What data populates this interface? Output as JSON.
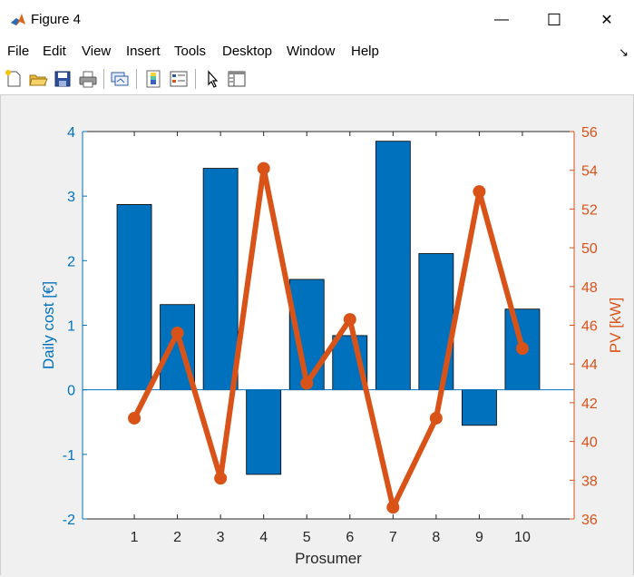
{
  "window": {
    "title": "Figure 4"
  },
  "window_controls": {
    "minimize": "—",
    "maximize": "☐",
    "close": "✕"
  },
  "menu": [
    "File",
    "Edit",
    "View",
    "Insert",
    "Tools",
    "Desktop",
    "Window",
    "Help"
  ],
  "toolbar": {
    "icons": [
      "new-figure-icon",
      "open-file-icon",
      "save-icon",
      "print-icon",
      "link-plot-icon",
      "insert-colorbar-icon",
      "insert-legend-icon",
      "edit-plot-icon",
      "property-inspector-icon"
    ]
  },
  "colors": {
    "bar": "#0072BD",
    "line": "#D95319",
    "left_axis": "#0072BD",
    "right_axis": "#D95319"
  },
  "chart_data": {
    "type": "bar",
    "xlabel": "Prosumer",
    "ylabel_left": "Daily cost [€]",
    "ylabel_right": "PV [kW]",
    "categories": [
      "1",
      "2",
      "3",
      "4",
      "5",
      "6",
      "7",
      "8",
      "9",
      "10"
    ],
    "x_ticks": [
      "1",
      "2",
      "3",
      "4",
      "5",
      "6",
      "7",
      "8",
      "9",
      "10"
    ],
    "xlim": [
      -0.2,
      11.2
    ],
    "ylim_left": [
      -2,
      4
    ],
    "ylim_right": [
      36,
      56
    ],
    "left_ticks": [
      "-2",
      "-1",
      "0",
      "1",
      "2",
      "3",
      "4"
    ],
    "right_ticks": [
      "36",
      "38",
      "40",
      "42",
      "44",
      "46",
      "48",
      "50",
      "52",
      "54",
      "56"
    ],
    "series": [
      {
        "axis": "left",
        "kind": "bar",
        "values": [
          2.87,
          1.32,
          3.43,
          -1.31,
          1.71,
          0.84,
          3.85,
          2.11,
          -0.55,
          1.25
        ]
      },
      {
        "axis": "right",
        "kind": "line",
        "values": [
          41.2,
          45.6,
          38.1,
          54.1,
          43.0,
          46.3,
          36.6,
          41.2,
          52.9,
          44.8
        ]
      }
    ],
    "grid": false,
    "legend": "none"
  }
}
